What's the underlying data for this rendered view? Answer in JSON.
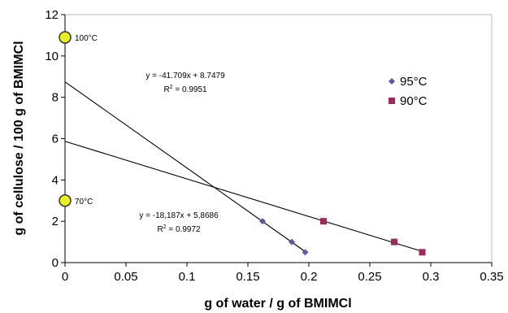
{
  "chart_data": {
    "type": "scatter",
    "xlabel": "g of water / g of BMIMCl",
    "ylabel": "g of cellulose / 100 g of BMIMCl",
    "xlim": [
      0,
      0.35
    ],
    "ylim": [
      0,
      12
    ],
    "x_ticks": [
      "0",
      "0.05",
      "0.1",
      "0.15",
      "0.2",
      "0.25",
      "0.3",
      "0.35"
    ],
    "y_ticks": [
      "0",
      "2",
      "4",
      "6",
      "8",
      "10",
      "12"
    ],
    "grid": false,
    "legend_position": "right",
    "series": [
      {
        "name": "95°C",
        "marker": "diamond",
        "color": "#5a5aa8",
        "points": [
          [
            0.162,
            2.0
          ],
          [
            0.186,
            1.0
          ],
          [
            0.197,
            0.5
          ]
        ],
        "fit": {
          "slope": -41.709,
          "intercept": 8.7479,
          "x_range": [
            0,
            0.197
          ]
        },
        "equation": "y = -41.709x + 8.7479",
        "r2_label": "R",
        "r2_value": "= 0.9951"
      },
      {
        "name": "90°C",
        "marker": "square",
        "color": "#9c2a5a",
        "points": [
          [
            0.212,
            2.0
          ],
          [
            0.27,
            1.0
          ],
          [
            0.293,
            0.5
          ]
        ],
        "fit": {
          "slope": -18.187,
          "intercept": 5.8686,
          "x_range": [
            0,
            0.293
          ]
        },
        "equation": "y = -18,187x + 5,8686",
        "r2_label": "R",
        "r2_value": "= 0.9972"
      }
    ],
    "axis_markers": [
      {
        "label": "100°C",
        "x": 0,
        "y": 10.9,
        "color": "#e8f020"
      },
      {
        "label": "70°C",
        "x": 0,
        "y": 3.0,
        "color": "#e8f020"
      }
    ]
  }
}
